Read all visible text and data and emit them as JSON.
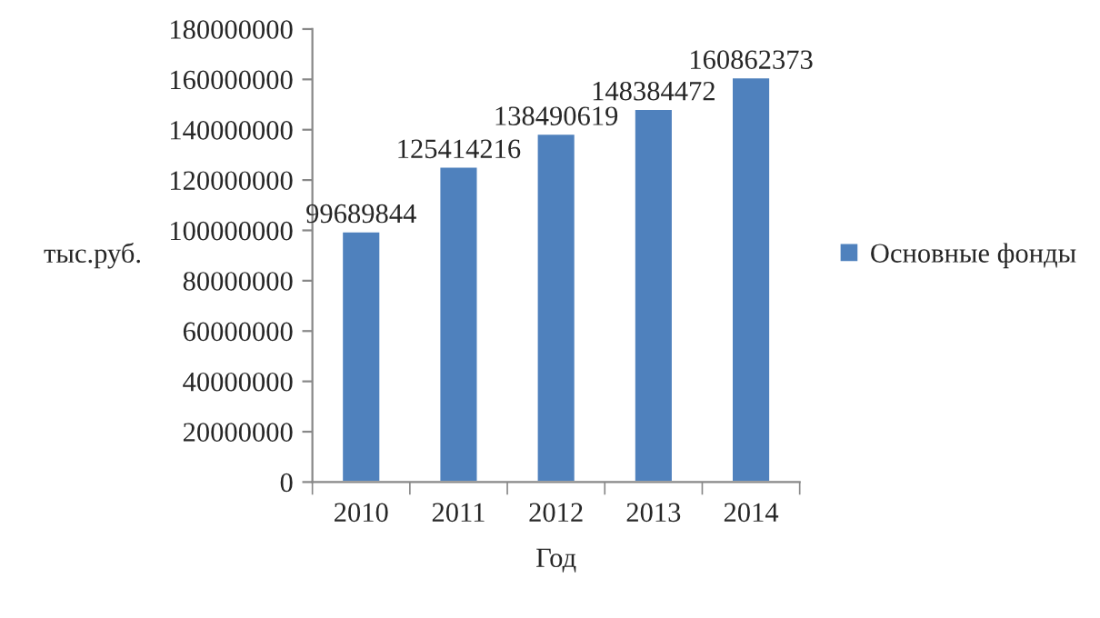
{
  "chart_data": {
    "type": "bar",
    "xlabel": "Год",
    "ylabel": "тыс.руб.",
    "categories": [
      "2010",
      "2011",
      "2012",
      "2013",
      "2014"
    ],
    "series": [
      {
        "name": "Основные фонды",
        "color": "#4f81bd",
        "values": [
          99689844,
          125414216,
          138490619,
          148384472,
          160862373
        ]
      }
    ],
    "ylim": [
      0,
      180000000
    ],
    "yticks": [
      0,
      20000000,
      40000000,
      60000000,
      80000000,
      100000000,
      120000000,
      140000000,
      160000000,
      180000000
    ],
    "data_labels": true,
    "grid": false,
    "legend": "right"
  }
}
